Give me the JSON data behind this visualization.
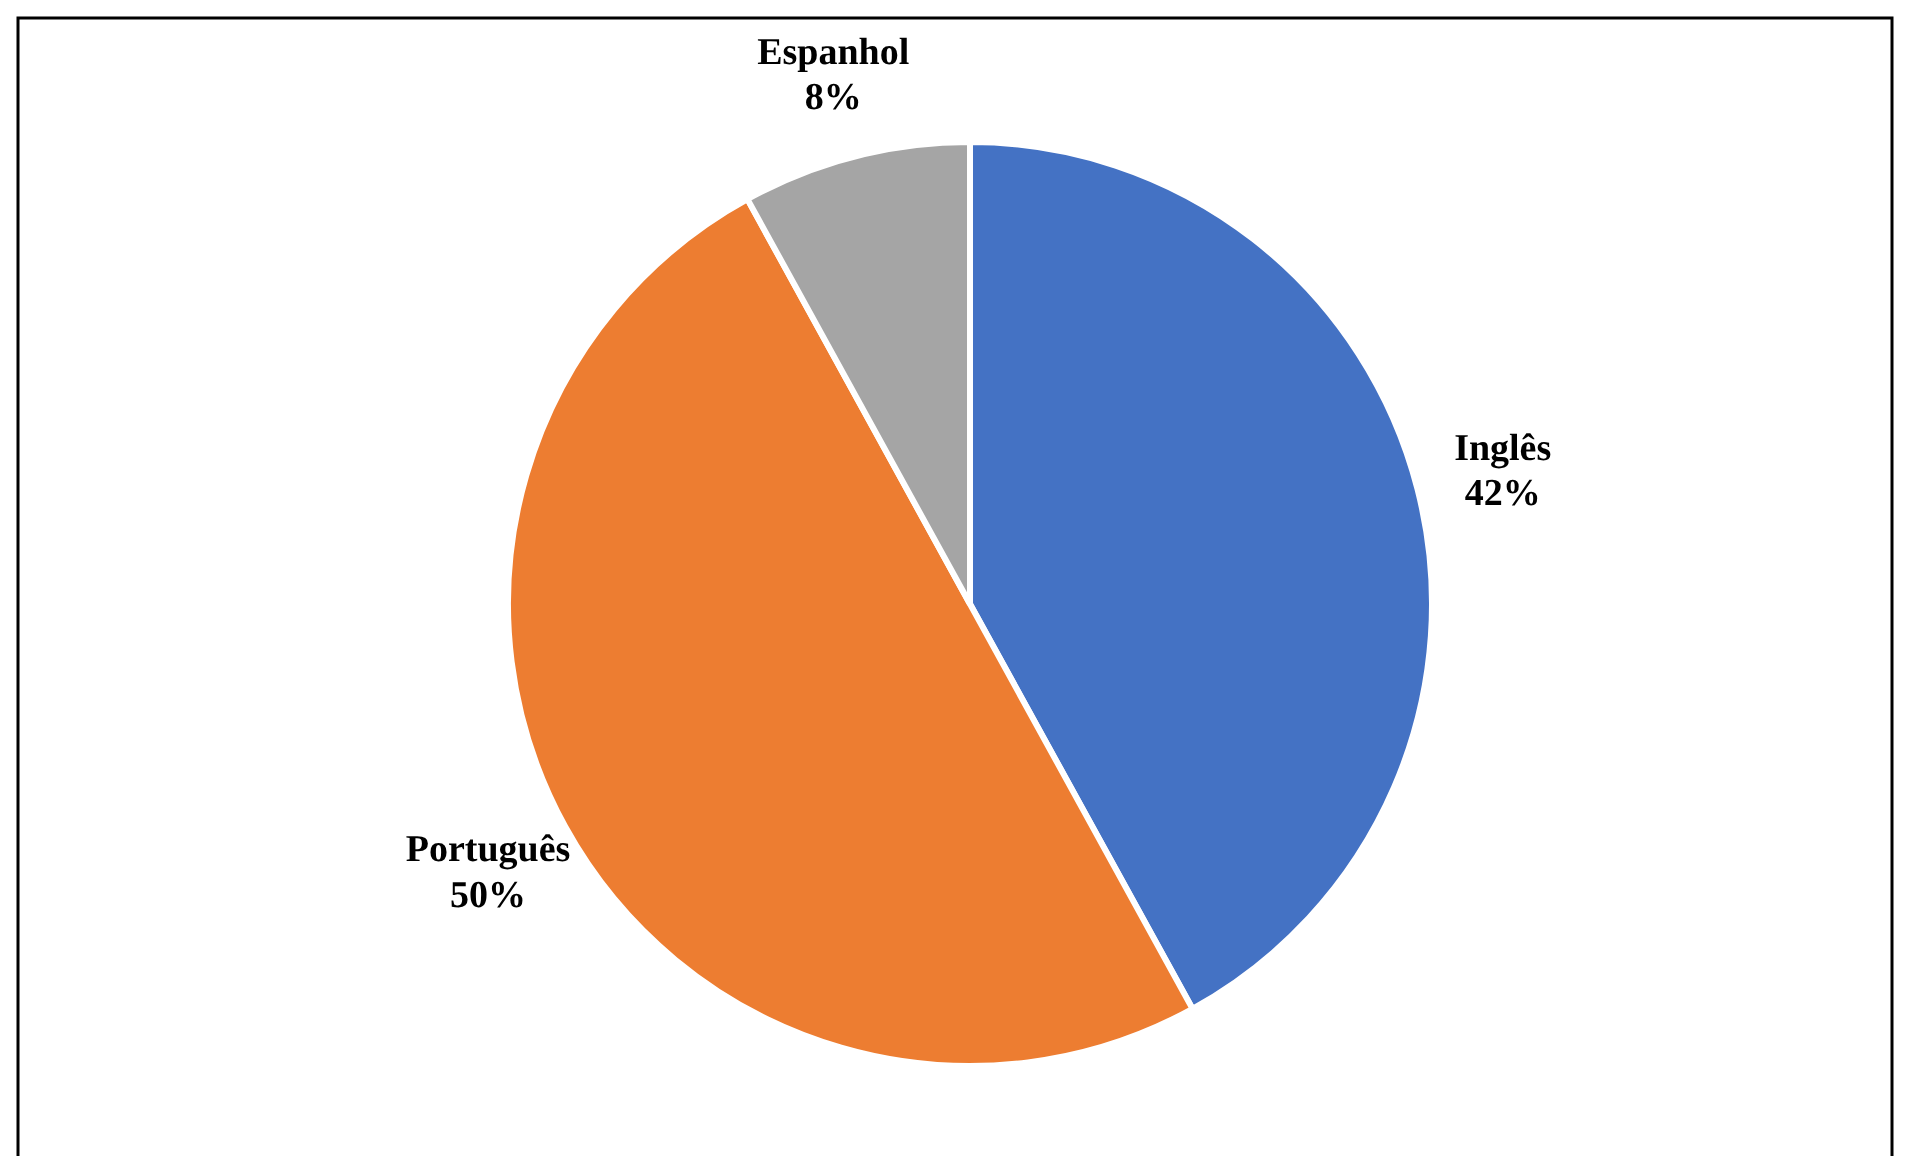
{
  "chart_data": {
    "type": "pie",
    "categories": [
      "Inglês",
      "Português",
      "Espanhol"
    ],
    "values": [
      42,
      50,
      8
    ],
    "colors": [
      "#4472c4",
      "#ed7d31",
      "#a5a5a5"
    ],
    "value_labels": [
      "42%",
      "50%",
      "8%"
    ]
  }
}
